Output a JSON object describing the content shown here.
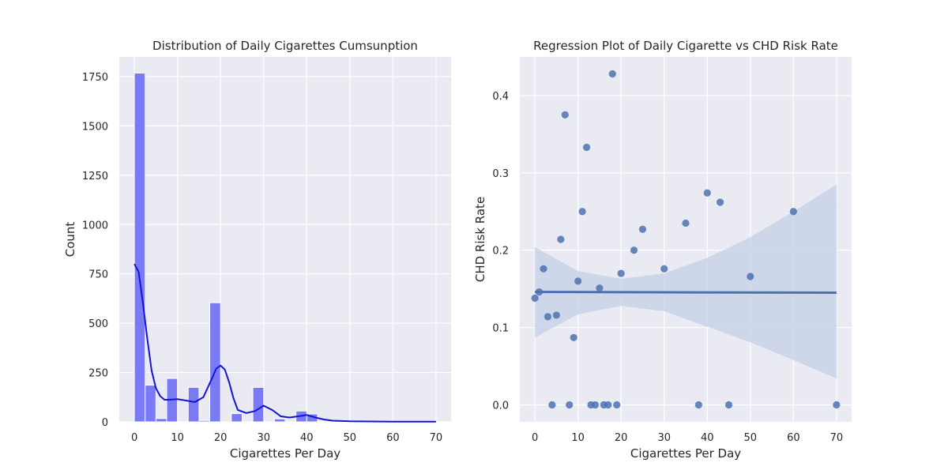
{
  "chart_data": [
    {
      "type": "bar",
      "subtype": "histogram-with-kde",
      "title": "Distribution of Daily Cigarettes Cumsunption",
      "xlabel": "Cigarettes Per Day",
      "ylabel": "Count",
      "xlim": [
        -3.5,
        73.5
      ],
      "ylim": [
        0,
        1850
      ],
      "xticks": [
        0,
        10,
        20,
        30,
        40,
        50,
        60,
        70
      ],
      "yticks": [
        0,
        250,
        500,
        750,
        1000,
        1250,
        1500,
        1750
      ],
      "bin_width": 2.5,
      "bins": [
        {
          "x0": 0,
          "x1": 2.5,
          "count": 1768
        },
        {
          "x0": 2.5,
          "x1": 5,
          "count": 186
        },
        {
          "x0": 5,
          "x1": 7.5,
          "count": 17
        },
        {
          "x0": 7.5,
          "x1": 10,
          "count": 220
        },
        {
          "x0": 10,
          "x1": 12.5,
          "count": 0
        },
        {
          "x0": 12.5,
          "x1": 15,
          "count": 175
        },
        {
          "x0": 15,
          "x1": 17.5,
          "count": 7
        },
        {
          "x0": 17.5,
          "x1": 20,
          "count": 604
        },
        {
          "x0": 20,
          "x1": 22.5,
          "count": 0
        },
        {
          "x0": 22.5,
          "x1": 25,
          "count": 42
        },
        {
          "x0": 25,
          "x1": 27.5,
          "count": 0
        },
        {
          "x0": 27.5,
          "x1": 30,
          "count": 175
        },
        {
          "x0": 30,
          "x1": 32.5,
          "count": 0
        },
        {
          "x0": 32.5,
          "x1": 35,
          "count": 15
        },
        {
          "x0": 35,
          "x1": 37.5,
          "count": 0
        },
        {
          "x0": 37.5,
          "x1": 40,
          "count": 55
        },
        {
          "x0": 40,
          "x1": 42.5,
          "count": 40
        },
        {
          "x0": 42.5,
          "x1": 45,
          "count": 2
        },
        {
          "x0": 45,
          "x1": 47.5,
          "count": 0
        },
        {
          "x0": 47.5,
          "x1": 50,
          "count": 2
        },
        {
          "x0": 50,
          "x1": 52.5,
          "count": 0
        },
        {
          "x0": 52.5,
          "x1": 55,
          "count": 0
        },
        {
          "x0": 55,
          "x1": 57.5,
          "count": 0
        },
        {
          "x0": 57.5,
          "x1": 60,
          "count": 1
        },
        {
          "x0": 60,
          "x1": 62.5,
          "count": 0
        },
        {
          "x0": 62.5,
          "x1": 65,
          "count": 0
        },
        {
          "x0": 65,
          "x1": 67.5,
          "count": 0
        },
        {
          "x0": 67.5,
          "x1": 70,
          "count": 1
        }
      ],
      "kde": {
        "x": [
          0,
          1,
          2,
          3,
          4,
          5,
          6,
          7,
          8,
          10,
          12,
          14,
          16,
          18,
          19,
          20,
          21,
          22,
          23,
          24,
          26,
          28,
          30,
          32,
          34,
          36,
          38,
          40,
          42,
          44,
          46,
          50,
          55,
          60,
          65,
          70
        ],
        "y": [
          800,
          760,
          600,
          420,
          260,
          170,
          130,
          112,
          112,
          115,
          108,
          100,
          125,
          220,
          270,
          285,
          265,
          200,
          120,
          60,
          45,
          55,
          82,
          60,
          28,
          22,
          28,
          35,
          22,
          12,
          6,
          3,
          2,
          1,
          1,
          1
        ]
      },
      "colors": {
        "bar_fill": "#7a7af5",
        "bar_edge": "#ffffff",
        "kde": "#1414d6",
        "background": "#eaeaf2",
        "grid": "#ffffff"
      },
      "grid": true
    },
    {
      "type": "scatter",
      "subtype": "regression",
      "title": "Regression Plot of Daily Cigarette vs CHD Risk Rate",
      "xlabel": "Cigarettes Per Day",
      "ylabel": "CHD Risk Rate",
      "xlim": [
        -3.5,
        73.5
      ],
      "ylim": [
        -0.022,
        0.45
      ],
      "xticks": [
        0,
        10,
        20,
        30,
        40,
        50,
        60,
        70
      ],
      "yticks": [
        "0.0",
        "0.1",
        "0.2",
        "0.3",
        "0.4"
      ],
      "points": [
        {
          "x": 0,
          "y": 0.138
        },
        {
          "x": 1,
          "y": 0.146
        },
        {
          "x": 2,
          "y": 0.176
        },
        {
          "x": 3,
          "y": 0.114
        },
        {
          "x": 4,
          "y": 0.0
        },
        {
          "x": 5,
          "y": 0.116
        },
        {
          "x": 6,
          "y": 0.214
        },
        {
          "x": 7,
          "y": 0.375
        },
        {
          "x": 8,
          "y": 0.0
        },
        {
          "x": 9,
          "y": 0.087
        },
        {
          "x": 10,
          "y": 0.16
        },
        {
          "x": 11,
          "y": 0.25
        },
        {
          "x": 12,
          "y": 0.333
        },
        {
          "x": 13,
          "y": 0.0
        },
        {
          "x": 14,
          "y": 0.0
        },
        {
          "x": 15,
          "y": 0.151
        },
        {
          "x": 16,
          "y": 0.0
        },
        {
          "x": 17,
          "y": 0.0
        },
        {
          "x": 18,
          "y": 0.428
        },
        {
          "x": 19,
          "y": 0.0
        },
        {
          "x": 20,
          "y": 0.17
        },
        {
          "x": 23,
          "y": 0.2
        },
        {
          "x": 25,
          "y": 0.227
        },
        {
          "x": 30,
          "y": 0.176
        },
        {
          "x": 35,
          "y": 0.235
        },
        {
          "x": 38,
          "y": 0.0
        },
        {
          "x": 40,
          "y": 0.274
        },
        {
          "x": 43,
          "y": 0.262
        },
        {
          "x": 45,
          "y": 0.0
        },
        {
          "x": 50,
          "y": 0.166
        },
        {
          "x": 60,
          "y": 0.25
        },
        {
          "x": 70,
          "y": 0.0
        }
      ],
      "regression": {
        "x0": 0,
        "y0": 0.146,
        "x1": 70,
        "y1": 0.145
      },
      "ci_band": {
        "x": [
          0,
          10,
          20,
          30,
          40,
          50,
          60,
          70
        ],
        "lower": [
          0.087,
          0.117,
          0.128,
          0.121,
          0.101,
          0.081,
          0.058,
          0.034
        ],
        "upper": [
          0.204,
          0.173,
          0.163,
          0.17,
          0.19,
          0.217,
          0.25,
          0.285
        ]
      },
      "colors": {
        "point": "#4c72b0",
        "line": "#4c72b0",
        "band": "#c9d3e8",
        "background": "#eaeaf2",
        "grid": "#ffffff"
      },
      "grid": true
    }
  ]
}
